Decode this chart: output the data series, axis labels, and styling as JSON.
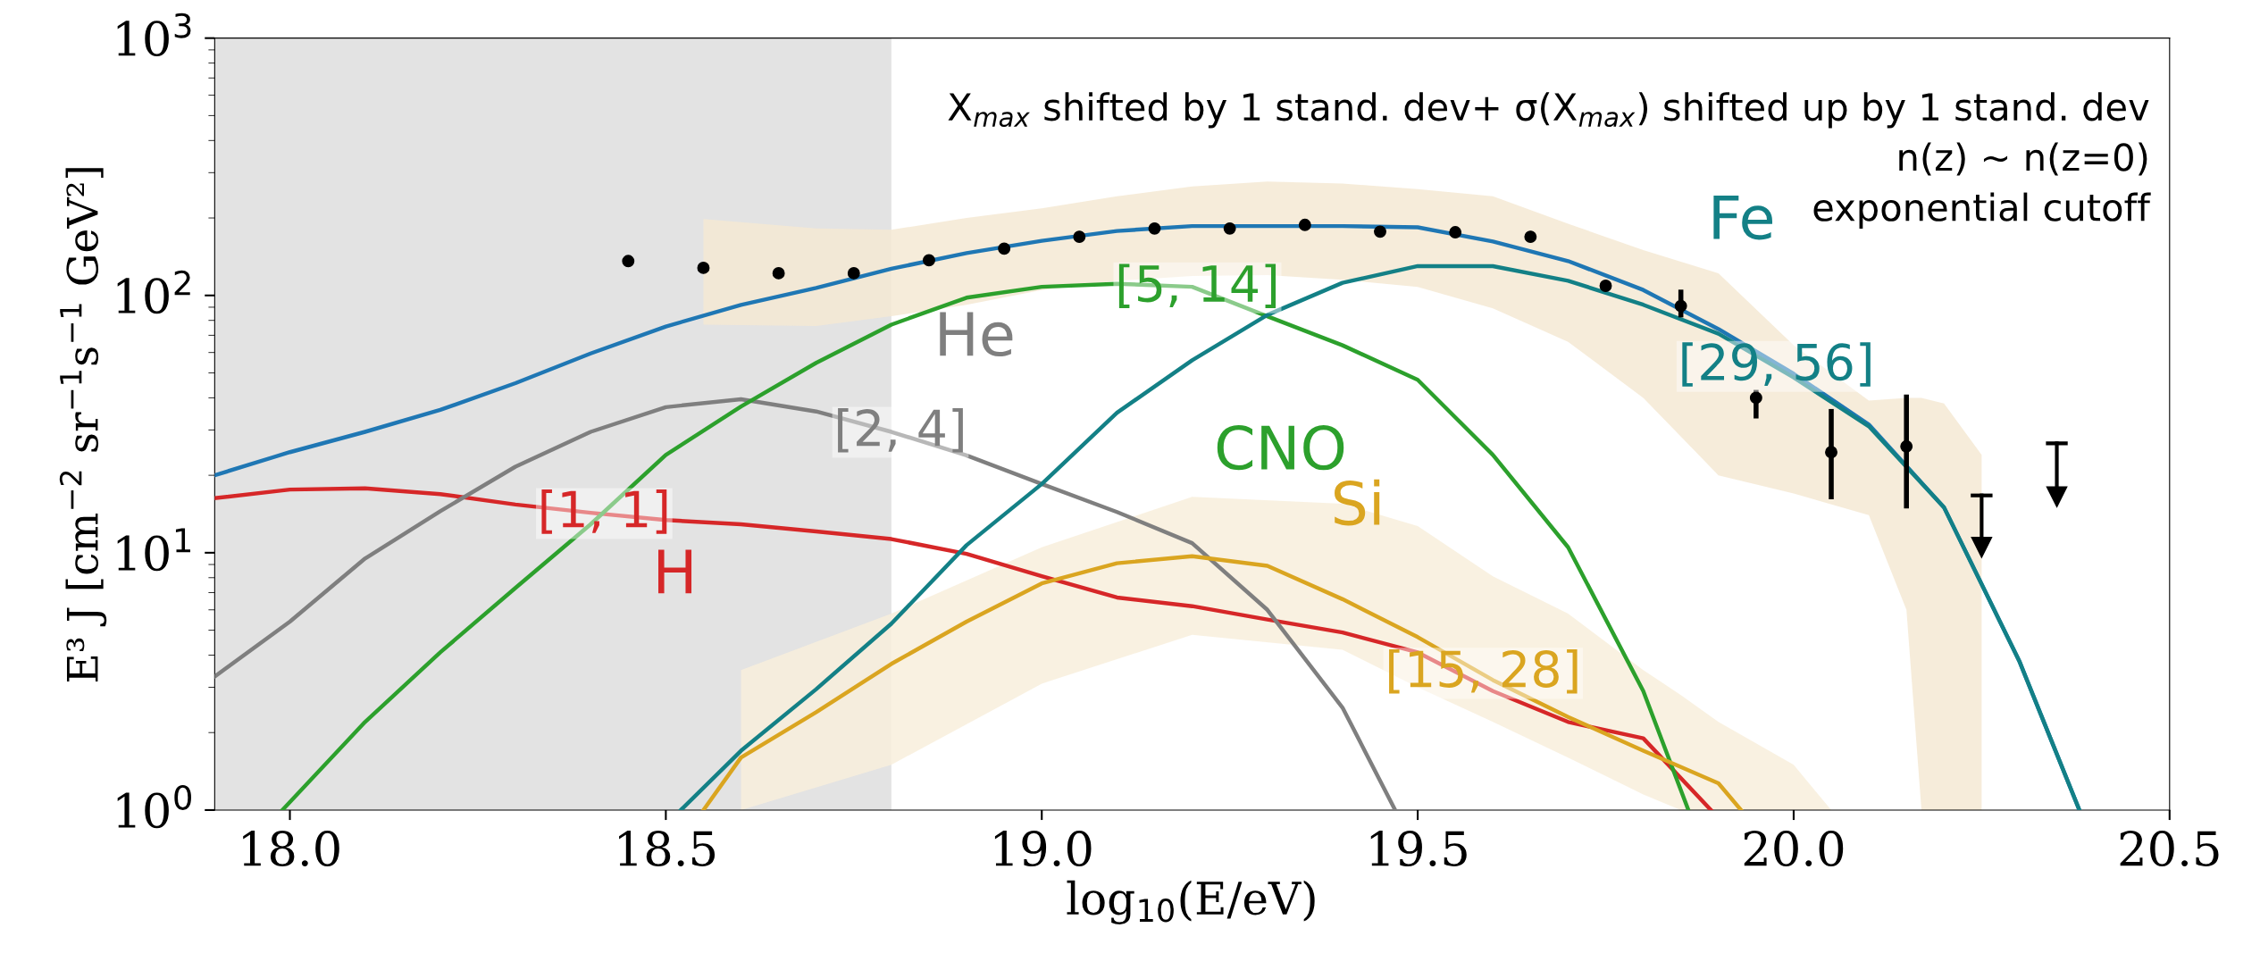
{
  "chart_data": {
    "type": "line",
    "xlabel": "log$_{10}$(E/eV)",
    "ylabel": "E³ J [cm$^{−2}$ sr$^{−1}$s$^{−1}$ GeV²]",
    "log": "y",
    "xlim": [
      17.9,
      20.5
    ],
    "xticks": [
      {
        "value": 18.0,
        "label": "18.0"
      },
      {
        "value": 18.5,
        "label": "18.5"
      },
      {
        "value": 19.0,
        "label": "19.0"
      },
      {
        "value": 19.5,
        "label": "19.5"
      },
      {
        "value": 20.0,
        "label": "20.0"
      },
      {
        "value": 20.5,
        "label": "20.5"
      }
    ],
    "ylim": [
      1,
      1000
    ],
    "yticks": [
      {
        "value": 1,
        "label": "10$^{0}$"
      },
      {
        "value": 10,
        "label": "10$^{1}$"
      },
      {
        "value": 100,
        "label": "10$^{2}$"
      },
      {
        "value": 1000,
        "label": "10$^{3}$"
      }
    ],
    "grid": false,
    "legend": false,
    "bands": [
      {
        "axis": "x",
        "from": 17.9,
        "to": 18.8,
        "color": "#e3e3e3"
      }
    ],
    "series": [
      {
        "type": "area",
        "color": "#f5e9d3",
        "x": [
          18.55,
          18.7,
          18.8,
          18.9,
          19.0,
          19.1,
          19.2,
          19.3,
          19.4,
          19.5,
          19.6,
          19.7,
          19.8,
          19.9,
          20.0,
          20.1,
          20.15,
          20.17,
          20.2,
          20.25
        ],
        "values": [
          null,
          null,
          null,
          null,
          null,
          null,
          null,
          null,
          null,
          null,
          null,
          null,
          null,
          null,
          null,
          null,
          null,
          null,
          null,
          null
        ],
        "upper": [
          198,
          182,
          180,
          200,
          218,
          243,
          265,
          277,
          272,
          259,
          243,
          190,
          150,
          122,
          64,
          39,
          40,
          40,
          38,
          24
        ],
        "lower": [
          77,
          76,
          83,
          92,
          105,
          114,
          119,
          120,
          115,
          108,
          89,
          66,
          40,
          20,
          17,
          14,
          6,
          1,
          1,
          1
        ]
      },
      {
        "type": "area",
        "color": "#f8eedc",
        "x": [
          18.6,
          18.8,
          19.0,
          19.2,
          19.4,
          19.5,
          19.6,
          19.7,
          19.8,
          19.85,
          19.9,
          20.0,
          20.05
        ],
        "values": [
          null,
          null,
          null,
          null,
          null,
          null,
          null,
          null,
          null,
          null,
          null,
          null,
          null
        ],
        "upper": [
          3.5,
          5.8,
          10.5,
          16.5,
          15.5,
          12.7,
          8.1,
          5.8,
          3.5,
          2.8,
          2.2,
          1.5,
          1
        ],
        "lower": [
          1,
          1.5,
          3.1,
          4.8,
          4.2,
          3.0,
          2.2,
          1.6,
          1.15,
          1,
          1,
          1,
          1
        ]
      },
      {
        "name": "H",
        "color": "#d62728",
        "x": [
          17.9,
          18.0,
          18.1,
          18.2,
          18.3,
          18.4,
          18.5,
          18.6,
          18.7,
          18.8,
          18.9,
          19.0,
          19.1,
          19.2,
          19.3,
          19.4,
          19.5,
          19.6,
          19.7,
          19.8,
          19.89
        ],
        "values": [
          16.3,
          17.6,
          17.8,
          16.9,
          15.4,
          14.3,
          13.4,
          12.9,
          12.1,
          11.3,
          9.9,
          8.1,
          6.7,
          6.2,
          5.5,
          4.9,
          4.1,
          2.9,
          2.2,
          1.9,
          1
        ]
      },
      {
        "name": "He",
        "color": "#7f7f7f",
        "x": [
          17.9,
          18.0,
          18.1,
          18.2,
          18.3,
          18.4,
          18.5,
          18.6,
          18.7,
          18.8,
          18.9,
          19.0,
          19.1,
          19.2,
          19.3,
          19.4,
          19.47
        ],
        "values": [
          3.3,
          5.4,
          9.5,
          14.5,
          21.6,
          29.5,
          36.8,
          39.5,
          35.4,
          29.5,
          23.9,
          18.5,
          14.4,
          10.9,
          6,
          2.5,
          1
        ]
      },
      {
        "name": "CNO",
        "color": "#2ca02c",
        "x": [
          17.99,
          18.1,
          18.2,
          18.3,
          18.4,
          18.5,
          18.6,
          18.7,
          18.8,
          18.9,
          19.0,
          19.1,
          19.2,
          19.3,
          19.4,
          19.5,
          19.6,
          19.7,
          19.8,
          19.86
        ],
        "values": [
          1,
          2.2,
          4.1,
          7.3,
          12.9,
          24,
          37,
          54.7,
          77,
          98,
          108,
          111,
          108,
          83,
          64,
          47,
          24,
          10.5,
          2.9,
          1
        ]
      },
      {
        "name": "Si",
        "color": "#daa520",
        "x": [
          18.55,
          18.6,
          18.7,
          18.8,
          18.9,
          19.0,
          19.1,
          19.2,
          19.3,
          19.4,
          19.5,
          19.6,
          19.7,
          19.8,
          19.9,
          19.93
        ],
        "values": [
          1,
          1.6,
          2.4,
          3.7,
          5.4,
          7.6,
          9.1,
          9.7,
          8.9,
          6.6,
          4.7,
          3.2,
          2.3,
          1.7,
          1.27,
          1
        ]
      },
      {
        "color": "#1f77b4",
        "x": [
          17.9,
          18.0,
          18.1,
          18.2,
          18.3,
          18.4,
          18.5,
          18.6,
          18.7,
          18.8,
          18.9,
          19.0,
          19.1,
          19.2,
          19.3,
          19.4,
          19.5,
          19.6,
          19.7,
          19.8,
          19.9,
          20.0,
          20.1,
          20.2,
          20.3,
          20.38
        ],
        "values": [
          20,
          24.6,
          29.5,
          35.9,
          45.6,
          59.5,
          75.7,
          91.9,
          107,
          127,
          146,
          163,
          178,
          186,
          186,
          186,
          184,
          162,
          136,
          105,
          74,
          49.6,
          31.5,
          15,
          3.8,
          1
        ]
      },
      {
        "name": "Fe",
        "color": "#138086",
        "x": [
          18.52,
          18.6,
          18.7,
          18.8,
          18.9,
          19.0,
          19.1,
          19.2,
          19.3,
          19.4,
          19.5,
          19.6,
          19.7,
          19.8,
          19.9,
          20.0,
          20.1,
          20.2,
          20.3,
          20.38
        ],
        "values": [
          1,
          1.7,
          2.95,
          5.3,
          10.7,
          18.5,
          35,
          56,
          84,
          112,
          130,
          130,
          114,
          92,
          71,
          48,
          31,
          15,
          3.8,
          1
        ]
      },
      {
        "type": "scatter",
        "color": "#000000",
        "marker": "circle",
        "x": [
          18.45,
          18.55,
          18.65,
          18.75,
          18.85,
          18.95,
          19.05,
          19.15,
          19.25,
          19.35,
          19.45,
          19.55,
          19.65,
          19.75,
          19.85,
          19.95,
          20.05,
          20.15
        ],
        "values": [
          136,
          128,
          122,
          122,
          137,
          152,
          169,
          182,
          182,
          188,
          177,
          176,
          169,
          109,
          91,
          40,
          24.6,
          25.9
        ],
        "errors": [
          null,
          null,
          null,
          null,
          null,
          null,
          null,
          null,
          null,
          null,
          null,
          null,
          null,
          null,
          [
            84,
            103
          ],
          [
            34,
            42
          ],
          [
            16.5,
            35.4
          ],
          [
            15.2,
            40.3
          ]
        ]
      },
      {
        "type": "scatter",
        "color": "#000000",
        "marker": "triangle",
        "x": [
          20.25,
          20.35
        ],
        "values": [
          10.5,
          16.5
        ],
        "errors": [
          [
            10.5,
            16.7
          ],
          [
            16.5,
            26.6
          ]
        ]
      }
    ],
    "annotations": [
      {
        "text": "[1, 1]",
        "x": 18.418,
        "y": 14.2
      },
      {
        "text": "[2, 4]",
        "x": 18.812,
        "y": 29.4
      },
      {
        "text": "[5, 14]",
        "x": 19.207,
        "y": 107
      },
      {
        "text": "[15, 28]",
        "x": 19.587,
        "y": 3.4
      },
      {
        "text": "[29, 56]",
        "x": 19.977,
        "y": 53
      },
      "X$_{max}$ shifted by 1 stand. dev+ σ(X$_{max}$) shifted up by 1 stand. dev\nn(z) ~ n(z=0)\nexponential cutoff"
    ]
  }
}
